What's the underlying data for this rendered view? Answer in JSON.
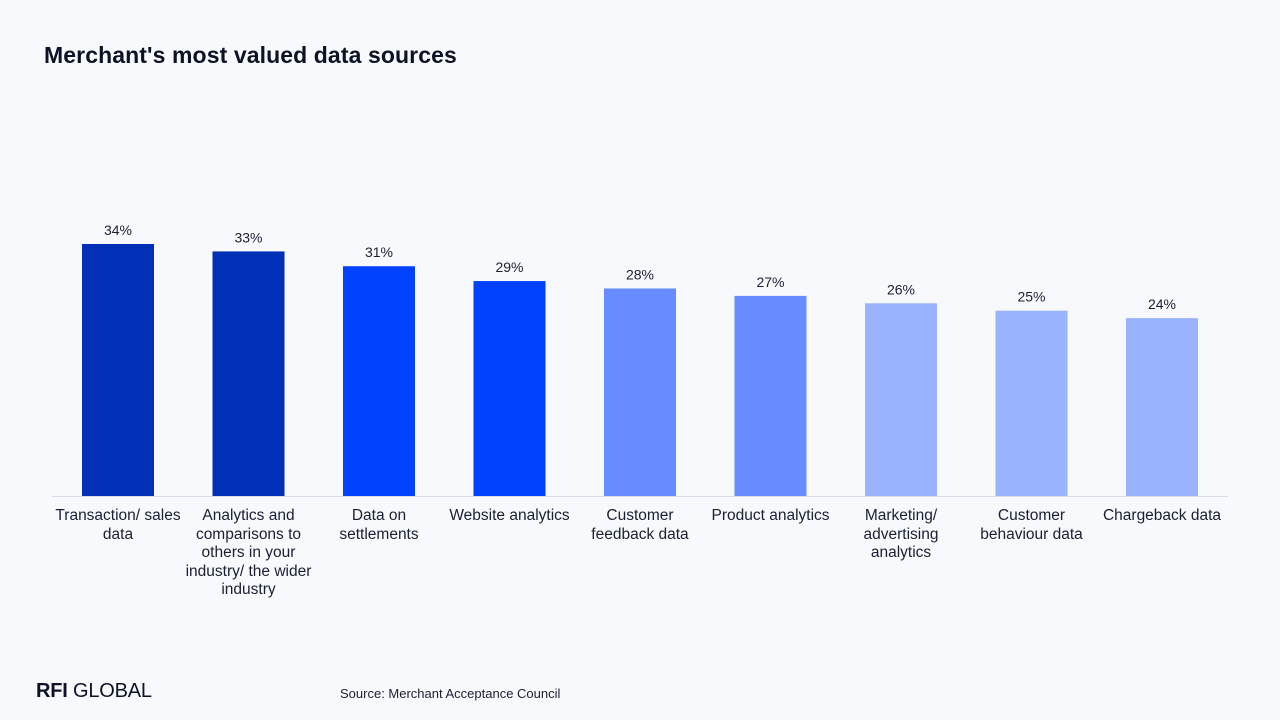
{
  "title": "Merchant's most valued data sources",
  "logo": {
    "bold": "RFI",
    "rest": " GLOBAL"
  },
  "source": "Source: Merchant Acceptance Council",
  "chart_data": {
    "type": "bar",
    "categories": [
      "Transaction/ sales data",
      "Analytics and comparisons to others in your industry/ the wider industry",
      "Data on settlements",
      "Website analytics",
      "Customer feedback data",
      "Product analytics",
      "Marketing/ advertising analytics",
      "Customer behaviour data",
      "Chargeback data"
    ],
    "values": [
      34,
      33,
      31,
      29,
      28,
      27,
      26,
      25,
      24
    ],
    "value_labels": [
      "34%",
      "33%",
      "31%",
      "29%",
      "28%",
      "27%",
      "26%",
      "25%",
      "24%"
    ],
    "colors": [
      "#0030b5",
      "#0030b5",
      "#0040ff",
      "#0040ff",
      "#668cff",
      "#668cff",
      "#99b3ff",
      "#99b3ff",
      "#99b3ff"
    ],
    "ylim": [
      0,
      40
    ],
    "grid": false,
    "legend": "none"
  }
}
